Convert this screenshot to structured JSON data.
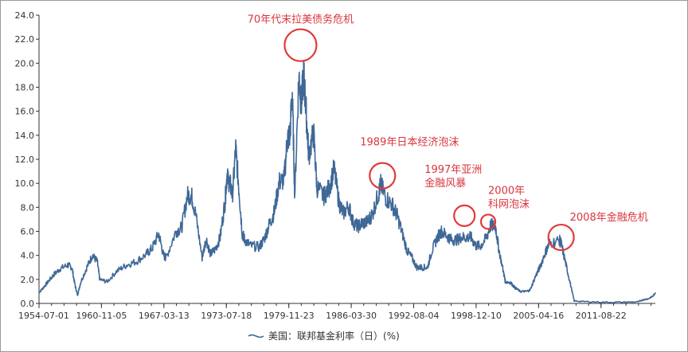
{
  "chart_data": {
    "type": "line",
    "title": "",
    "xlabel": "",
    "ylabel": "",
    "ylim": [
      0,
      24
    ],
    "yticks": [
      "0.0",
      "2.0",
      "4.0",
      "6.0",
      "8.0",
      "10.0",
      "12.0",
      "14.0",
      "16.0",
      "18.0",
      "20.0",
      "22.0",
      "24.0"
    ],
    "xlim": [
      "1954-07-01",
      "2017-03-01"
    ],
    "xticks": [
      "1954-07-01",
      "1960-11-05",
      "1967-03-13",
      "1973-07-18",
      "1979-11-23",
      "1986-03-30",
      "1992-08-04",
      "1998-12-10",
      "2005-04-16",
      "2011-08-22"
    ],
    "grid": false,
    "legend": {
      "placement": "bottom-center",
      "label": "美国：联邦基金利率（日）(%)"
    },
    "line_color": "#3f6897",
    "series": [
      {
        "name": "美国：联邦基金利率（日）(%)",
        "x": [
          "1954-07-01",
          "1954-12-01",
          "1955-06-01",
          "1956-01-01",
          "1956-09-01",
          "1957-06-01",
          "1957-11-01",
          "1958-03-01",
          "1958-06-01",
          "1958-10-01",
          "1959-06-01",
          "1959-12-01",
          "1960-06-01",
          "1960-09-01",
          "1961-06-01",
          "1962-06-01",
          "1963-06-01",
          "1964-06-01",
          "1965-06-01",
          "1966-01-01",
          "1966-09-01",
          "1967-03-01",
          "1967-06-01",
          "1968-06-01",
          "1969-01-01",
          "1969-08-01",
          "1970-01-01",
          "1970-06-01",
          "1971-02-01",
          "1971-07-01",
          "1971-12-01",
          "1972-06-01",
          "1972-12-01",
          "1973-06-01",
          "1973-08-01",
          "1973-12-01",
          "1974-03-01",
          "1974-07-01",
          "1974-11-01",
          "1975-03-01",
          "1975-06-01",
          "1976-01-01",
          "1976-12-01",
          "1977-06-01",
          "1977-12-01",
          "1978-06-01",
          "1978-12-01",
          "1979-06-01",
          "1979-10-01",
          "1980-01-01",
          "1980-04-01",
          "1980-07-01",
          "1980-12-01",
          "1981-03-01",
          "1981-06-01",
          "1981-09-01",
          "1981-12-01",
          "1982-06-01",
          "1982-10-01",
          "1983-06-01",
          "1984-01-01",
          "1984-07-01",
          "1985-01-01",
          "1985-06-01",
          "1986-01-01",
          "1986-06-01",
          "1986-12-01",
          "1987-06-01",
          "1987-12-01",
          "1988-06-01",
          "1989-01-01",
          "1989-04-01",
          "1989-10-01",
          "1990-06-01",
          "1990-12-01",
          "1991-06-01",
          "1991-12-01",
          "1992-06-01",
          "1992-12-01",
          "1993-06-01",
          "1994-01-01",
          "1994-06-01",
          "1995-01-01",
          "1995-06-01",
          "1996-01-01",
          "1996-06-01",
          "1997-01-01",
          "1997-06-01",
          "1998-01-01",
          "1998-06-01",
          "1998-12-01",
          "1999-06-01",
          "2000-01-01",
          "2000-06-01",
          "2000-12-01",
          "2001-04-01",
          "2001-10-01",
          "2001-12-01",
          "2002-06-01",
          "2002-12-01",
          "2003-06-01",
          "2004-01-01",
          "2004-06-01",
          "2005-01-01",
          "2005-06-01",
          "2006-01-01",
          "2006-06-01",
          "2007-06-01",
          "2007-08-01",
          "2008-01-01",
          "2008-06-01",
          "2008-12-01",
          "2010-01-01",
          "2012-01-01",
          "2014-01-01",
          "2015-06-01",
          "2015-12-01",
          "2016-06-01",
          "2016-12-01",
          "2017-03-01"
        ],
        "values": [
          0.9,
          1.3,
          1.8,
          2.4,
          2.9,
          3.2,
          3.0,
          1.5,
          0.7,
          1.8,
          3.1,
          4.0,
          3.5,
          2.0,
          1.8,
          2.7,
          3.2,
          3.5,
          4.1,
          4.6,
          5.8,
          4.0,
          3.8,
          6.0,
          6.3,
          9.0,
          9.0,
          7.5,
          3.8,
          5.4,
          4.1,
          4.5,
          5.5,
          8.5,
          10.5,
          10.0,
          9.0,
          12.9,
          9.4,
          5.8,
          5.3,
          4.8,
          4.7,
          5.4,
          6.6,
          7.6,
          10.1,
          10.3,
          13.7,
          14.0,
          17.6,
          9.0,
          19.0,
          16.6,
          19.1,
          15.8,
          12.4,
          14.2,
          9.7,
          8.9,
          9.6,
          11.2,
          8.4,
          7.5,
          8.1,
          6.8,
          6.4,
          6.7,
          6.8,
          7.5,
          9.1,
          9.9,
          8.8,
          8.2,
          7.3,
          5.9,
          4.4,
          3.8,
          3.0,
          3.0,
          3.0,
          4.3,
          5.5,
          6.0,
          5.6,
          5.3,
          5.3,
          5.5,
          5.5,
          5.5,
          4.8,
          4.8,
          5.5,
          6.5,
          6.4,
          4.5,
          2.5,
          1.8,
          1.75,
          1.3,
          1.0,
          1.0,
          1.1,
          2.3,
          3.0,
          4.3,
          5.0,
          5.25,
          5.0,
          3.5,
          2.0,
          0.2,
          0.15,
          0.1,
          0.1,
          0.13,
          0.3,
          0.38,
          0.6,
          0.9
        ]
      }
    ],
    "annotations": [
      {
        "text": "70年代末拉美债务危机",
        "date": "1981-02-01",
        "value": 21.5
      },
      {
        "text": "1989年日本经济泡沫",
        "date": "1989-06-01",
        "value": 10.3
      },
      {
        "text": "1997年亚洲\n金融风暴",
        "date": "1997-10-01",
        "value": 7.5
      },
      {
        "text": "2000年\n科网泡沫",
        "date": "2000-03-01",
        "value": 7.0
      },
      {
        "text": "2008年金融危机",
        "date": "2007-08-01",
        "value": 5.5
      }
    ]
  }
}
